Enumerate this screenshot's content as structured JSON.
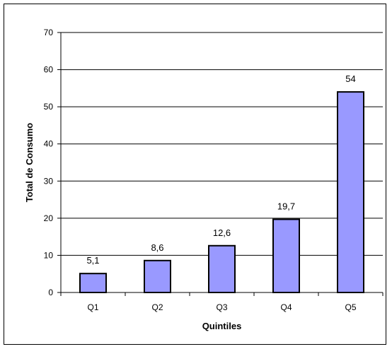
{
  "chart_data": {
    "type": "bar",
    "categories": [
      "Q1",
      "Q2",
      "Q3",
      "Q4",
      "Q5"
    ],
    "values": [
      5.1,
      8.6,
      12.6,
      19.7,
      54
    ],
    "data_labels": [
      "5,1",
      "8,6",
      "12,6",
      "19,7",
      "54"
    ],
    "xlabel": "Quintiles",
    "ylabel": "Total de Consumo",
    "ylim": [
      0,
      70
    ],
    "yticks": [
      0,
      10,
      20,
      30,
      40,
      50,
      60,
      70
    ],
    "grid": true,
    "legend": "none",
    "colors": {
      "bar_fill": "#9999ff",
      "bar_stroke": "#000000",
      "grid": "#000000"
    }
  }
}
